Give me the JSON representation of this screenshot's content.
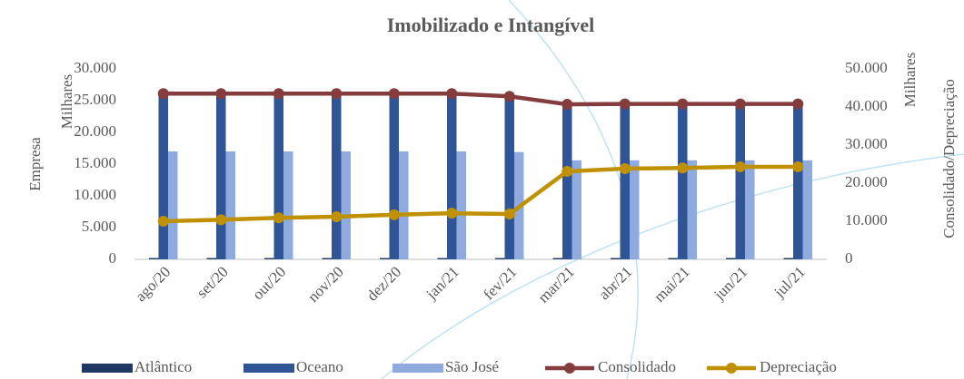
{
  "chart_data": {
    "type": "bar",
    "title": "Imobilizado e Intangível",
    "y_label": "Empresa",
    "y_unit_label": "Milhares",
    "y2_unit_label": "Milhares",
    "y2_label": "Consolidado/Depreciação",
    "categories": [
      "ago/20",
      "set/20",
      "out/20",
      "nov/20",
      "dez/20",
      "jan/21",
      "fev/21",
      "mar/21",
      "abr/21",
      "mai/21",
      "jun/21",
      "jul/21"
    ],
    "series": [
      {
        "name": "Atlântico",
        "type": "bar",
        "color": "#1f3864",
        "values": [
          200,
          200,
          200,
          200,
          200,
          200,
          200,
          200,
          200,
          200,
          200,
          200
        ]
      },
      {
        "name": "Oceano",
        "type": "bar",
        "color": "#2f5597",
        "values": [
          26000,
          26000,
          26000,
          26000,
          26000,
          26000,
          25900,
          24700,
          24700,
          24700,
          24700,
          24700
        ]
      },
      {
        "name": "São José",
        "type": "bar",
        "color": "#8faadc",
        "values": [
          17000,
          17000,
          17000,
          17000,
          17000,
          17000,
          16900,
          15600,
          15600,
          15600,
          15600,
          15600
        ]
      },
      {
        "name": "Consolidado",
        "type": "line",
        "axis": "y2",
        "color": "#843c3c",
        "values": [
          43500,
          43500,
          43500,
          43500,
          43500,
          43500,
          42800,
          40700,
          40800,
          40800,
          40800,
          40800
        ]
      },
      {
        "name": "Depreciação",
        "type": "line",
        "axis": "y2",
        "color": "#bf9000",
        "values": [
          10000,
          10400,
          10900,
          11200,
          11700,
          12100,
          11900,
          23100,
          23800,
          24000,
          24300,
          24300
        ]
      }
    ],
    "ylim": [
      0,
      30000
    ],
    "yticks": [
      0,
      {
        "value": 5000,
        "label": "5.000"
      },
      {
        "value": 10000,
        "label": "10.000"
      },
      {
        "value": 15000,
        "label": "15.000"
      },
      {
        "value": 20000,
        "label": "20.000"
      },
      {
        "value": 25000,
        "label": "25.000"
      },
      {
        "value": 30000,
        "label": "30.000"
      }
    ],
    "y2lim": [
      0,
      50000
    ],
    "y2ticks": [
      0,
      {
        "value": 10000,
        "label": "10.000"
      },
      {
        "value": 20000,
        "label": "20.000"
      },
      {
        "value": 30000,
        "label": "30.000"
      },
      {
        "value": 40000,
        "label": "40.000"
      },
      {
        "value": 50000,
        "label": "50.000"
      }
    ],
    "grid": false,
    "legend": "bottom"
  }
}
